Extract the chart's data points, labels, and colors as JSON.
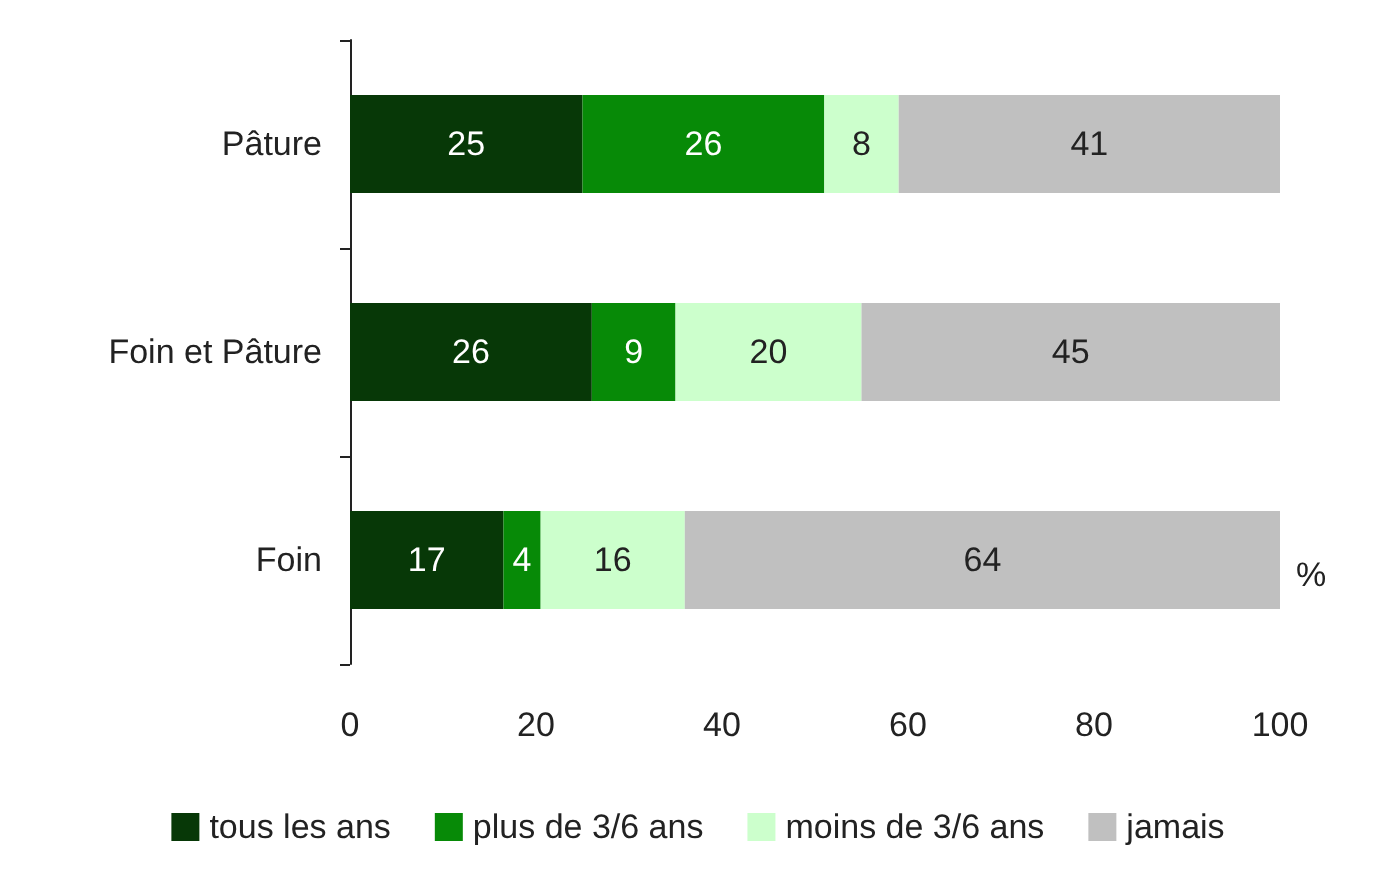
{
  "chart_data": {
    "type": "bar",
    "orientation": "horizontal",
    "stacked": true,
    "xlabel": "%",
    "categories": [
      "Pâture",
      "Foin et Pâture",
      "Foin"
    ],
    "series": [
      {
        "name": "tous les ans",
        "color": "#073807",
        "values": [
          25,
          26,
          16.5
        ],
        "value_labels": [
          "25",
          "26",
          "17"
        ]
      },
      {
        "name": "plus de 3/6 ans",
        "color": "#078a07",
        "values": [
          26,
          9,
          4
        ],
        "value_labels": [
          "26",
          "9",
          "4"
        ]
      },
      {
        "name": "moins de 3/6 ans",
        "color": "#ccffcc",
        "values": [
          8,
          20,
          15.5
        ],
        "value_labels": [
          "8",
          "20",
          "16"
        ]
      },
      {
        "name": "jamais",
        "color": "#c0c0c0",
        "values": [
          41,
          45,
          64
        ],
        "value_labels": [
          "41",
          "45",
          "64"
        ]
      }
    ],
    "xlim": [
      0,
      100
    ],
    "xticks": [
      0,
      20,
      40,
      60,
      80,
      100
    ],
    "grid": false,
    "legend": "bottom"
  }
}
